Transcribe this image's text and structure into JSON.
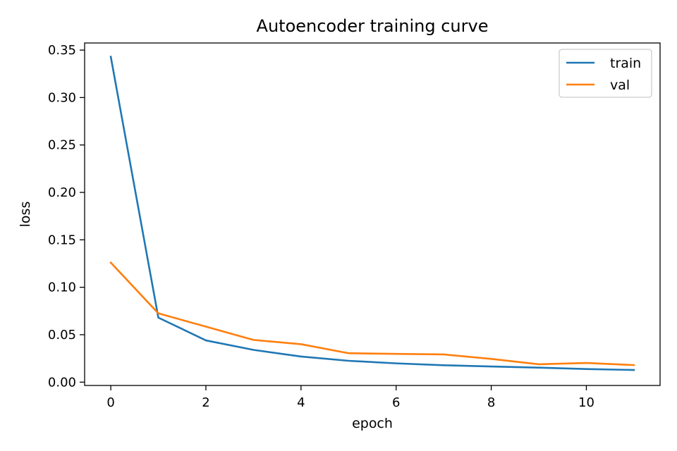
{
  "chart_data": {
    "type": "line",
    "title": "Autoencoder training curve",
    "xlabel": "epoch",
    "ylabel": "loss",
    "xlim": [
      -0.55,
      11.55
    ],
    "ylim": [
      -0.0035,
      0.3575
    ],
    "x_ticks": [
      0,
      2,
      4,
      6,
      8,
      10
    ],
    "x_tick_labels": [
      "0",
      "2",
      "4",
      "6",
      "8",
      "10"
    ],
    "y_ticks": [
      0.0,
      0.05,
      0.1,
      0.15,
      0.2,
      0.25,
      0.3,
      0.35
    ],
    "y_tick_labels": [
      "0.00",
      "0.05",
      "0.10",
      "0.15",
      "0.20",
      "0.25",
      "0.30",
      "0.35"
    ],
    "grid": false,
    "legend": "top-right",
    "x": [
      0,
      1,
      2,
      3,
      4,
      5,
      6,
      7,
      8,
      9,
      10,
      11
    ],
    "series": [
      {
        "name": "train",
        "color": "#1f77b4",
        "values": [
          0.343,
          0.068,
          0.044,
          0.034,
          0.027,
          0.0225,
          0.0198,
          0.0178,
          0.0165,
          0.0153,
          0.0138,
          0.0128
        ]
      },
      {
        "name": "val",
        "color": "#ff7f0e",
        "values": [
          0.126,
          0.0725,
          0.0585,
          0.0445,
          0.04,
          0.0305,
          0.0298,
          0.0292,
          0.0245,
          0.0188,
          0.0202,
          0.018
        ]
      }
    ]
  }
}
